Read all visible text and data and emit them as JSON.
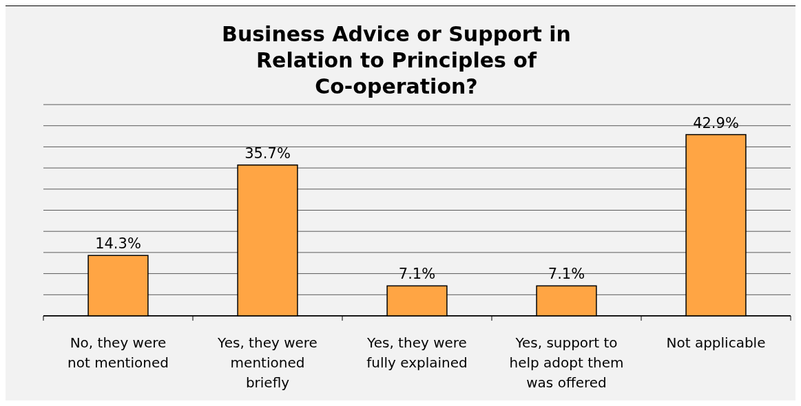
{
  "chart_data": {
    "type": "bar",
    "title": "Business Advice or Support in Relation to Principles of Co-operation?",
    "categories": [
      "No, they were not mentioned",
      "Yes, they were mentioned briefly",
      "Yes, they were fully explained",
      "Yes, support to help adopt them was offered",
      "Not applicable"
    ],
    "values": [
      14.3,
      35.7,
      7.1,
      7.1,
      42.9
    ],
    "value_labels": [
      "14.3%",
      "35.7%",
      "7.1%",
      "7.1%",
      "42.9%"
    ],
    "color": "#ffa544",
    "ylim": [
      0,
      50
    ],
    "yticks": [
      {
        "value": 0,
        "label": null
      },
      {
        "value": 5,
        "label": null
      },
      {
        "value": 10,
        "label": null
      },
      {
        "value": 15,
        "label": null
      },
      {
        "value": 20,
        "label": null
      },
      {
        "value": 25,
        "label": null
      },
      {
        "value": 30,
        "label": null
      },
      {
        "value": 35,
        "label": null
      },
      {
        "value": 40,
        "label": null
      },
      {
        "value": 45,
        "label": null
      },
      {
        "value": 50,
        "label": null
      }
    ],
    "tick_labels": "x",
    "grid": true
  }
}
